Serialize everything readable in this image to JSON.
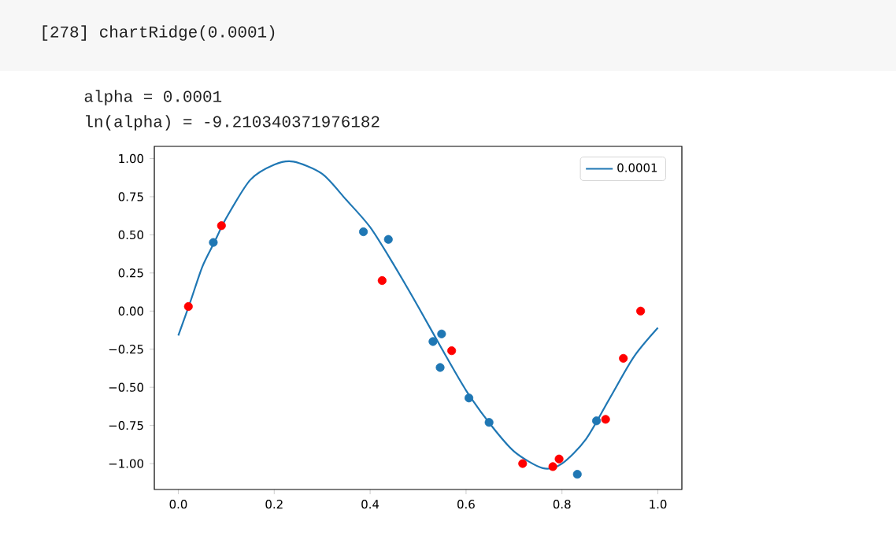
{
  "chart_data": {
    "type": "scatter",
    "annotations": [
      "[278] chartRidge(0.0001)",
      "alpha =  0.0001",
      "ln(alpha) =  -9.210340371976182"
    ],
    "xlim": [
      -0.05,
      1.05
    ],
    "ylim": [
      -1.17,
      1.08
    ],
    "xticks": [
      {
        "value": 0,
        "label": "0.0"
      },
      {
        "value": 0.2,
        "label": "0.2"
      },
      {
        "value": 0.4,
        "label": "0.4"
      },
      {
        "value": 0.6,
        "label": "0.6"
      },
      {
        "value": 0.8,
        "label": "0.8"
      },
      {
        "value": 1,
        "label": "1.0"
      }
    ],
    "yticks": [
      {
        "value": -1,
        "label": "−1.00"
      },
      {
        "value": -0.75,
        "label": "−0.75"
      },
      {
        "value": -0.5,
        "label": "−0.50"
      },
      {
        "value": -0.25,
        "label": "−0.25"
      },
      {
        "value": 0,
        "label": "0.00"
      },
      {
        "value": 0.25,
        "label": "0.25"
      },
      {
        "value": 0.5,
        "label": "0.50"
      },
      {
        "value": 0.75,
        "label": "0.75"
      },
      {
        "value": 1,
        "label": "1.00"
      }
    ],
    "legend": "top right",
    "series": [
      {
        "type": "line",
        "name": "0.0001",
        "color": "#1f77b4",
        "marker": "none",
        "x": [
          0,
          0.025,
          0.05,
          0.075,
          0.1,
          0.15,
          0.2,
          0.24,
          0.3,
          0.35,
          0.4,
          0.45,
          0.5,
          0.55,
          0.6,
          0.65,
          0.7,
          0.76,
          0.8,
          0.85,
          0.9,
          0.95,
          1.0
        ],
        "values": [
          -0.16,
          0.06,
          0.29,
          0.45,
          0.61,
          0.86,
          0.96,
          0.98,
          0.9,
          0.73,
          0.55,
          0.3,
          0.03,
          -0.25,
          -0.52,
          -0.74,
          -0.92,
          -1.03,
          -1.0,
          -0.84,
          -0.57,
          -0.3,
          -0.11
        ]
      },
      {
        "color": "#1f77b4",
        "marker": "circle",
        "x": [
          0.073,
          0.386,
          0.438,
          0.531,
          0.549,
          0.546,
          0.606,
          0.648,
          0.832,
          0.872
        ],
        "values": [
          0.45,
          0.52,
          0.47,
          -0.2,
          -0.15,
          -0.37,
          -0.57,
          -0.73,
          -1.07,
          -0.72
        ]
      },
      {
        "color": "#ff0000",
        "marker": "circle",
        "x": [
          0.021,
          0.09,
          0.425,
          0.57,
          0.718,
          0.781,
          0.794,
          0.891,
          0.928,
          0.964
        ],
        "values": [
          0.03,
          0.56,
          0.2,
          -0.26,
          -1.0,
          -1.02,
          -0.97,
          -0.71,
          -0.31,
          0.0
        ]
      }
    ]
  }
}
